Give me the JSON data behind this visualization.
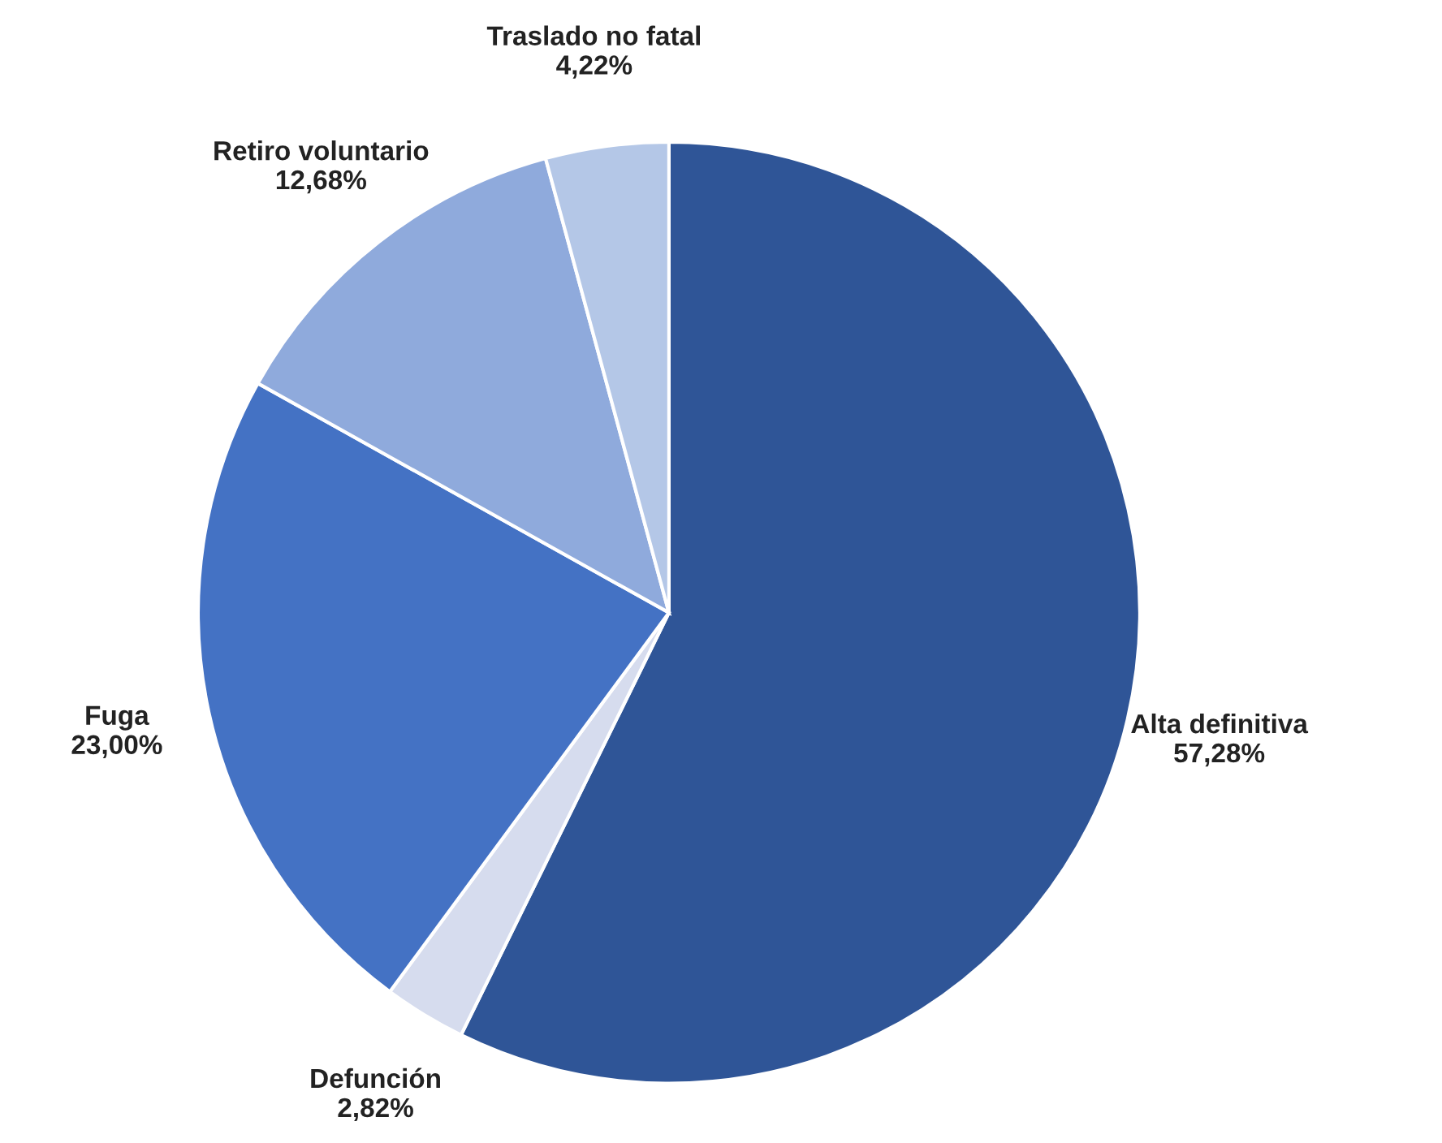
{
  "chart_data": {
    "type": "pie",
    "categories": [
      "Alta definitiva",
      "Defunción",
      "Fuga",
      "Retiro voluntario",
      "Traslado no fatal"
    ],
    "values": [
      57.28,
      2.82,
      23.0,
      12.68,
      4.22
    ],
    "value_labels": [
      "57,28%",
      "2,82%",
      "23,00%",
      "12,68%",
      "4,22%"
    ],
    "colors": [
      "#2f5597",
      "#d6dcee",
      "#4472c4",
      "#8faadc",
      "#b4c7e7"
    ],
    "legend": false
  }
}
